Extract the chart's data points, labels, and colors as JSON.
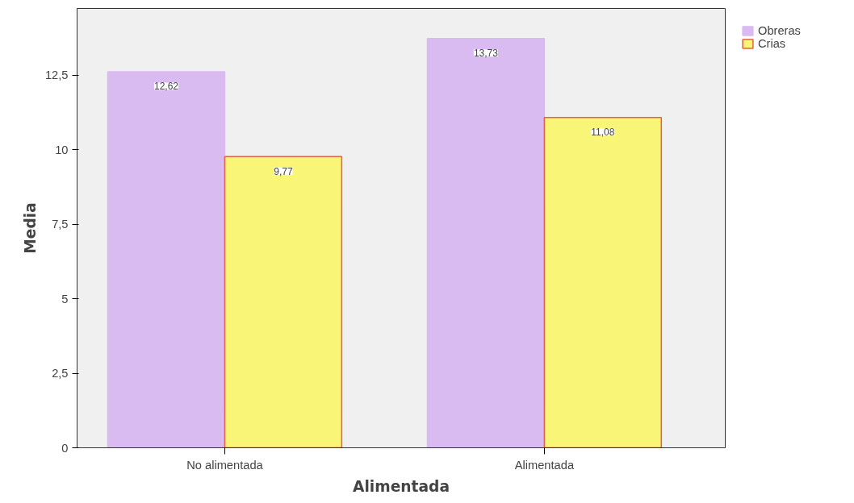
{
  "chart_data": {
    "type": "bar",
    "xlabel": "Alimentada",
    "ylabel": "Media",
    "categories": [
      "No alimentada",
      "Alimentada"
    ],
    "series": [
      {
        "name": "Obreras",
        "color": "#d9bbf1",
        "values": [
          12.62,
          13.73
        ]
      },
      {
        "name": "Crias",
        "color": "#f8f577",
        "values": [
          9.77,
          11.08
        ]
      }
    ],
    "ylim": [
      0,
      14.74
    ],
    "yticks": [
      0,
      {
        "value": 2.5,
        "label": "2,5"
      },
      5,
      {
        "value": 7.5,
        "label": "7,5"
      },
      10,
      {
        "value": 12.5,
        "label": "12,5"
      }
    ],
    "value_labels": [
      [
        "12,62",
        "13,73"
      ],
      [
        "9,77",
        "11,08"
      ]
    ],
    "grid": false,
    "legend": "top right"
  }
}
